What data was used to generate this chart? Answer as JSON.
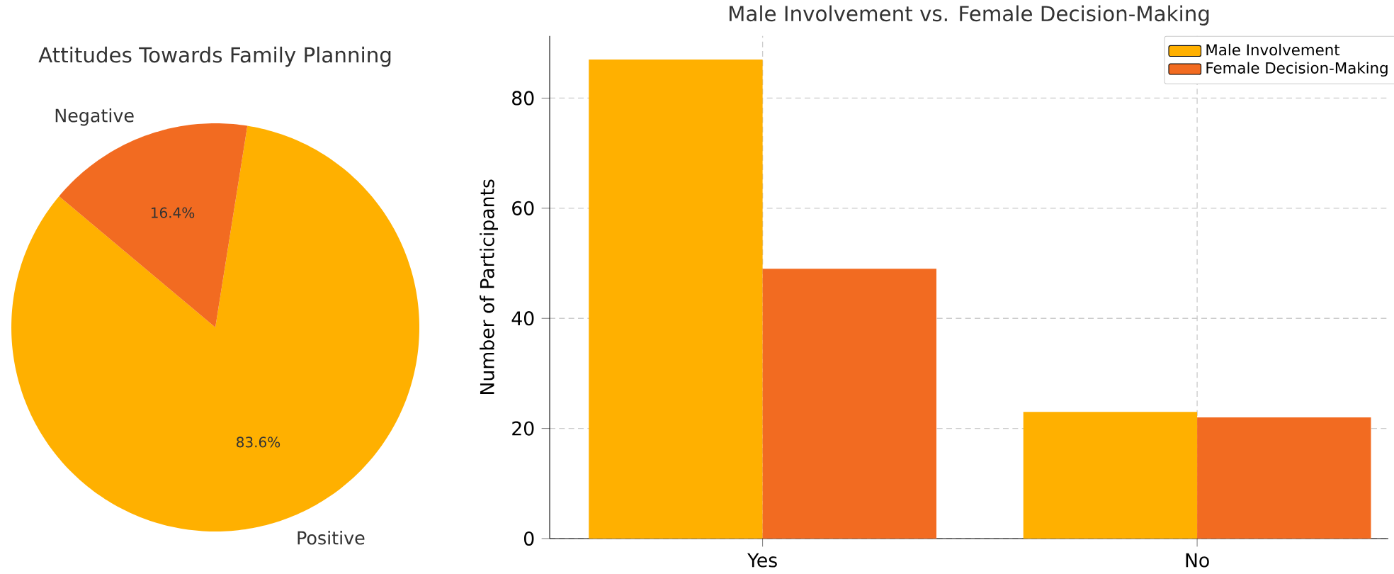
{
  "chart_data": [
    {
      "type": "pie",
      "title": "Attitudes Towards Family Planning",
      "categories": [
        "Positive",
        "Negative"
      ],
      "values": [
        83.6,
        16.4
      ],
      "colors": [
        "#ffb000",
        "#f26b21"
      ],
      "value_labels": [
        "83.6%",
        "16.4%"
      ]
    },
    {
      "type": "bar",
      "title": "Male Involvement vs. Female Decision-Making",
      "ylabel": "Number of Participants",
      "categories": [
        "Yes",
        "No"
      ],
      "series": [
        {
          "name": "Male Involvement",
          "color": "#ffb000",
          "values": [
            87,
            23
          ]
        },
        {
          "name": "Female Decision-Making",
          "color": "#f26b21",
          "values": [
            49,
            22
          ]
        }
      ],
      "ylim": [
        0,
        91.3
      ],
      "yticks": [
        0,
        20,
        40,
        60,
        80
      ],
      "grid": true,
      "legend": "top right"
    }
  ]
}
